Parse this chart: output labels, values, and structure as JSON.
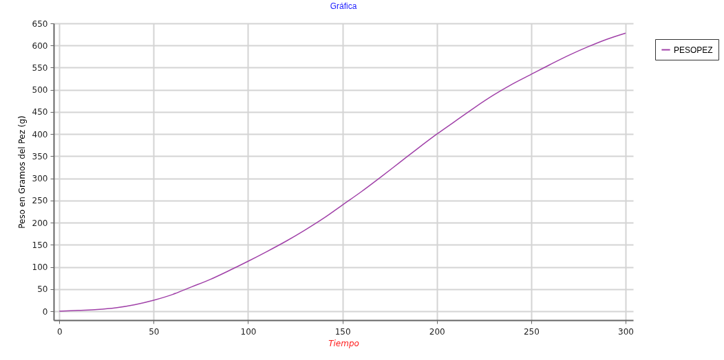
{
  "chart_data": {
    "type": "line",
    "title": "Gráfica",
    "xlabel": "Tiempo",
    "ylabel": "Peso en Gramos del Pez (g)",
    "x": [
      0,
      10,
      20,
      30,
      40,
      50,
      60,
      70,
      80,
      90,
      100,
      110,
      120,
      130,
      140,
      150,
      160,
      170,
      180,
      190,
      200,
      210,
      220,
      230,
      240,
      250,
      260,
      270,
      280,
      290,
      300
    ],
    "series": [
      {
        "name": "PESOPEZ",
        "color": "#a040a8",
        "values": [
          0,
          2,
          4,
          8,
          15,
          25,
          38,
          55,
          72,
          92,
          113,
          135,
          158,
          183,
          210,
          240,
          270,
          302,
          335,
          368,
          400,
          430,
          460,
          488,
          513,
          535,
          557,
          578,
          597,
          614,
          628
        ]
      }
    ],
    "xlim": [
      -3,
      304
    ],
    "ylim": [
      -20,
      650
    ],
    "xticks": [
      0,
      50,
      100,
      150,
      200,
      250,
      300
    ],
    "yticks": [
      0,
      50,
      100,
      150,
      200,
      250,
      300,
      350,
      400,
      450,
      500,
      550,
      600,
      650
    ],
    "grid": true,
    "legend": "top right"
  }
}
